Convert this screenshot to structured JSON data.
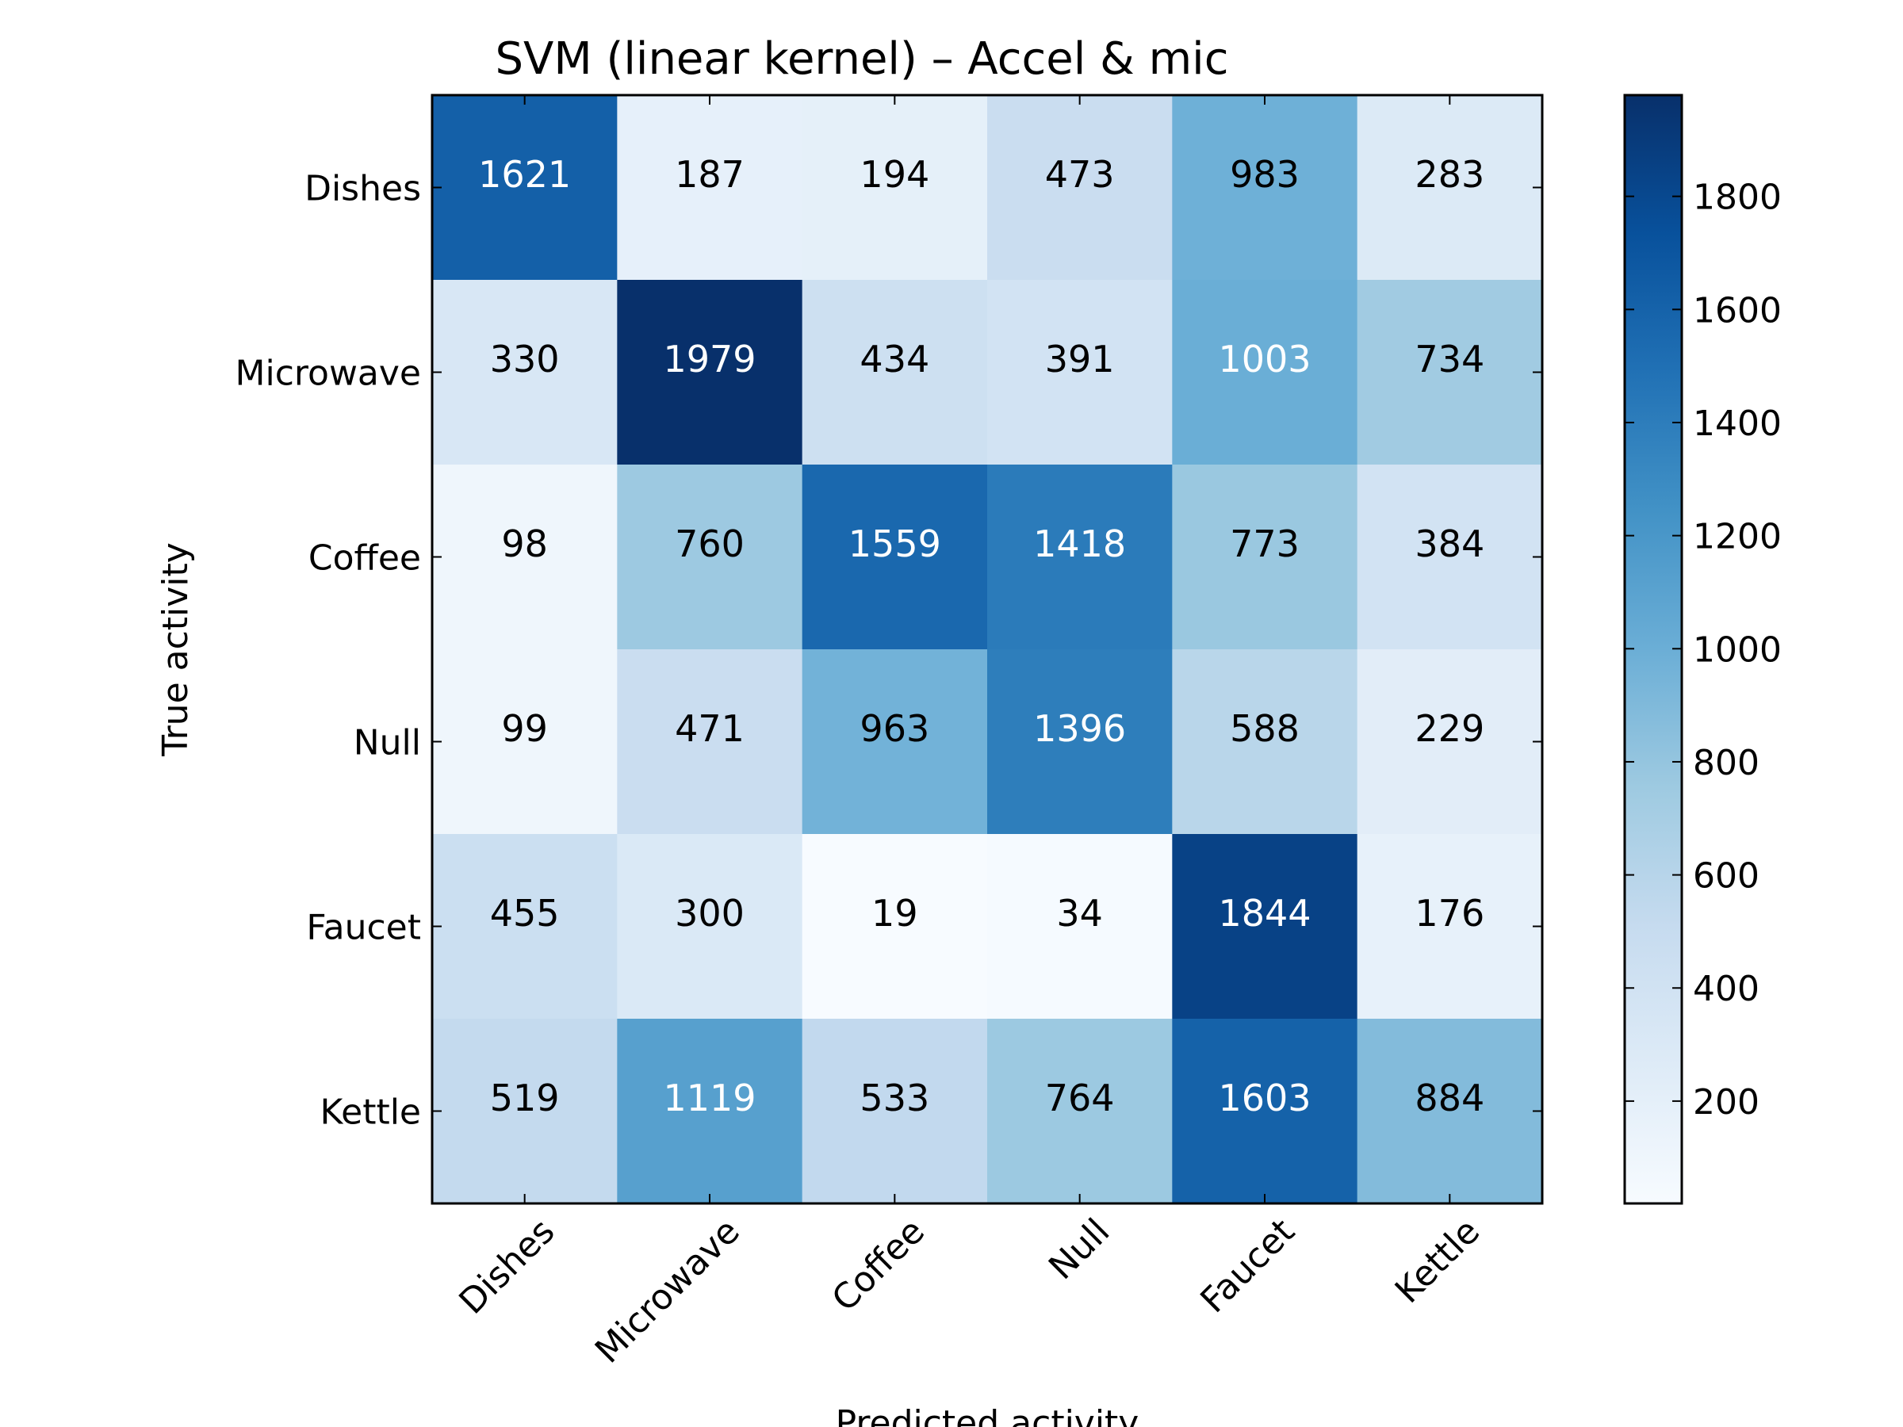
{
  "chart_data": {
    "type": "heatmap",
    "title": "SVM (linear kernel) – Accel & mic",
    "xlabel": "Predicted activity",
    "ylabel": "True activity",
    "x_categories": [
      "Dishes",
      "Microwave",
      "Coffee",
      "Null",
      "Faucet",
      "Kettle"
    ],
    "y_categories": [
      "Dishes",
      "Microwave",
      "Coffee",
      "Null",
      "Faucet",
      "Kettle"
    ],
    "values": [
      [
        1621,
        187,
        194,
        473,
        983,
        283
      ],
      [
        330,
        1979,
        434,
        391,
        1003,
        734
      ],
      [
        98,
        760,
        1559,
        1418,
        773,
        384
      ],
      [
        99,
        471,
        963,
        1396,
        588,
        229
      ],
      [
        455,
        300,
        19,
        34,
        1844,
        176
      ],
      [
        519,
        1119,
        533,
        764,
        1603,
        884
      ]
    ],
    "colormap": "Blues",
    "color_range": [
      19,
      1979
    ],
    "colorbar_ticks": [
      200,
      400,
      600,
      800,
      1000,
      1200,
      1400,
      1600,
      1800
    ],
    "grid": false
  }
}
